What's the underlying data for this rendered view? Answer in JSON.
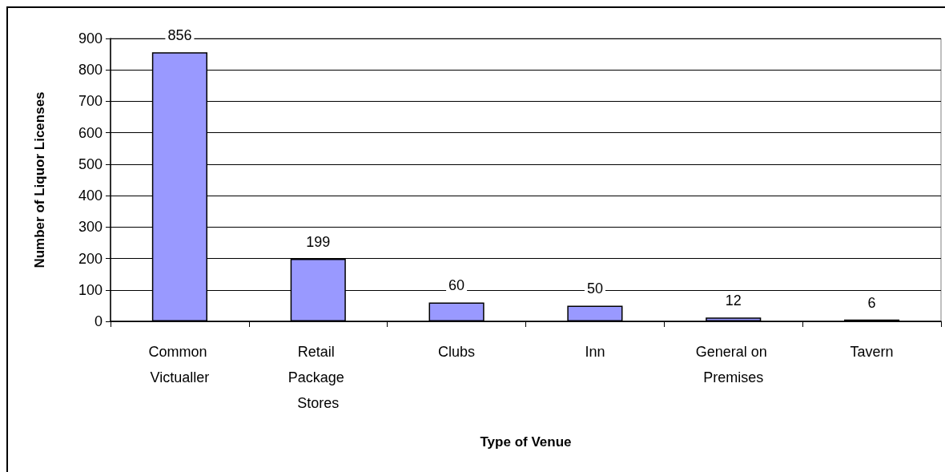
{
  "chart_data": {
    "type": "bar",
    "xlabel": "Type of Venue",
    "ylabel": "Number of Liquor Licenses",
    "categories": [
      "Common Victualler",
      "Retail Package Stores",
      "Clubs",
      "Inn",
      "General on Premises",
      "Tavern"
    ],
    "values": [
      856,
      199,
      60,
      50,
      12,
      6
    ],
    "color": "#9999ff",
    "ylim": [
      0,
      900
    ],
    "yticks": [
      0,
      100,
      200,
      300,
      400,
      500,
      600,
      700,
      800,
      900
    ],
    "grid": "y",
    "data_labels": true
  }
}
